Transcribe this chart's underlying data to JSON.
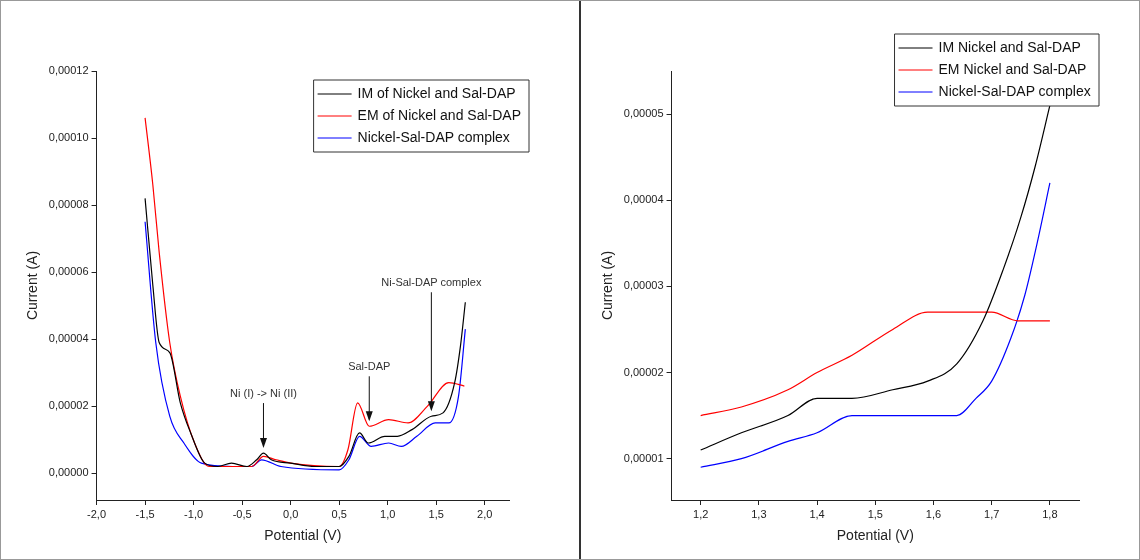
{
  "chart_data": [
    {
      "type": "line",
      "xlabel": "Potential (V)",
      "ylabel": "Current (A)",
      "legend": "top right",
      "grid": false,
      "xlim": [
        -2,
        2.25
      ],
      "ylim": [
        -8e-06,
        0.00012
      ],
      "xticks": [
        {
          "value": -2,
          "label": "-2,0"
        },
        {
          "value": -1.5,
          "label": "-1,5"
        },
        {
          "value": -1,
          "label": "-1,0"
        },
        {
          "value": -0.5,
          "label": "-0,5"
        },
        {
          "value": 0,
          "label": "0,0"
        },
        {
          "value": 0.5,
          "label": "0,5"
        },
        {
          "value": 1,
          "label": "1,0"
        },
        {
          "value": 1.5,
          "label": "1,5"
        },
        {
          "value": 2,
          "label": "2,0"
        }
      ],
      "yticks": [
        {
          "value": 0,
          "label": "0,00000"
        },
        {
          "value": 2e-05,
          "label": "0,00002"
        },
        {
          "value": 4e-05,
          "label": "0,00004"
        },
        {
          "value": 6e-05,
          "label": "0,00006"
        },
        {
          "value": 8e-05,
          "label": "0,00008"
        },
        {
          "value": 0.0001,
          "label": "0,00010"
        },
        {
          "value": 0.00012,
          "label": "0,00012"
        }
      ],
      "annotations": [
        {
          "text": "Ni (I) -> Ni (II)",
          "x": -0.28,
          "y": 6e-06
        },
        {
          "text": "Sal-DAP",
          "x": 0.81,
          "y": 1.4e-05
        },
        {
          "text": "Ni-Sal-DAP complex",
          "x": 1.45,
          "y": 1.7e-05
        }
      ],
      "series": [
        {
          "name": "IM of Nickel and Sal-DAP",
          "color": "#000000",
          "x": [
            -1.5,
            -1.42,
            -1.355,
            -1.246,
            -1.137,
            -1.03,
            -0.885,
            -0.75,
            -0.61,
            -0.45,
            -0.35,
            -0.28,
            -0.2,
            0,
            0.25,
            0.5,
            0.6,
            0.71,
            0.8,
            0.97,
            1.1,
            1.25,
            1.45,
            1.57,
            1.69,
            1.75,
            1.8
          ],
          "values": [
            8.2e-05,
            5.6e-05,
            3.9e-05,
            3.6e-05,
            2.1e-05,
            1.2e-05,
            3e-06,
            2e-06,
            3e-06,
            2e-06,
            4e-06,
            6e-06,
            4e-06,
            3e-06,
            2e-06,
            2e-06,
            5e-06,
            1.2e-05,
            9e-06,
            1.1e-05,
            1.1e-05,
            1.3e-05,
            1.7e-05,
            1.8e-05,
            2.7e-05,
            3.8e-05,
            5.1e-05
          ]
        },
        {
          "name": "EM of Nickel and Sal-DAP",
          "color": "#ff0000",
          "x": [
            -1.5,
            -1.42,
            -1.355,
            -1.246,
            -1.137,
            -0.99,
            -0.84,
            -0.6,
            -0.4,
            -0.28,
            -0.15,
            0,
            0.5,
            0.59,
            0.69,
            0.81,
            1.01,
            1.21,
            1.41,
            1.63,
            1.79
          ],
          "values": [
            0.000106,
            8.6e-05,
            6.6e-05,
            3.9e-05,
            2.3e-05,
            9e-06,
            2e-06,
            2e-06,
            2e-06,
            5e-06,
            4e-06,
            3e-06,
            2e-06,
            7e-06,
            2.1e-05,
            1.4e-05,
            1.6e-05,
            1.5e-05,
            2e-05,
            2.7e-05,
            2.6e-05
          ]
        },
        {
          "name": "Nickel-Sal-DAP complex",
          "color": "#0000ff",
          "x": [
            -1.5,
            -1.39,
            -1.246,
            -1.1,
            -0.92,
            -0.6,
            -0.4,
            -0.3,
            -0.1,
            0.5,
            0.6,
            0.71,
            0.83,
            1.01,
            1.14,
            1.3,
            1.49,
            1.63,
            1.73,
            1.8
          ],
          "values": [
            7.5e-05,
            3.9e-05,
            1.7e-05,
            9e-06,
            3e-06,
            2e-06,
            2e-06,
            4e-06,
            2e-06,
            1e-06,
            4e-06,
            1.1e-05,
            8e-06,
            9e-06,
            8e-06,
            1.1e-05,
            1.5e-05,
            1.5e-05,
            2.3e-05,
            4.3e-05
          ]
        }
      ]
    },
    {
      "type": "line",
      "xlabel": "Potential (V)",
      "ylabel": "Current (A)",
      "legend": "top right",
      "grid": false,
      "xlim": [
        1.15,
        1.85
      ],
      "ylim": [
        5.2e-06,
        5.5e-05
      ],
      "xticks": [
        {
          "value": 1.2,
          "label": "1,2"
        },
        {
          "value": 1.3,
          "label": "1,3"
        },
        {
          "value": 1.4,
          "label": "1,4"
        },
        {
          "value": 1.5,
          "label": "1,5"
        },
        {
          "value": 1.6,
          "label": "1,6"
        },
        {
          "value": 1.7,
          "label": "1,7"
        },
        {
          "value": 1.8,
          "label": "1,8"
        }
      ],
      "yticks": [
        {
          "value": 1e-05,
          "label": "0,00001"
        },
        {
          "value": 2e-05,
          "label": "0,00002"
        },
        {
          "value": 3e-05,
          "label": "0,00003"
        },
        {
          "value": 4e-05,
          "label": "0,00004"
        },
        {
          "value": 5e-05,
          "label": "0,00005"
        }
      ],
      "series": [
        {
          "name": "IM Nickel and Sal-DAP",
          "color": "#000000",
          "x": [
            1.2,
            1.27,
            1.35,
            1.4,
            1.46,
            1.53,
            1.59,
            1.64,
            1.685,
            1.72,
            1.75,
            1.775,
            1.8
          ],
          "values": [
            1.1e-05,
            1.3e-05,
            1.5e-05,
            1.7e-05,
            1.7e-05,
            1.8e-05,
            1.9e-05,
            2.1e-05,
            2.6e-05,
            3.2e-05,
            3.8e-05,
            4.4e-05,
            5.1e-05
          ]
        },
        {
          "name": "EM Nickel and Sal-DAP",
          "color": "#ff0000",
          "x": [
            1.2,
            1.27,
            1.35,
            1.4,
            1.46,
            1.53,
            1.59,
            1.64,
            1.7,
            1.745,
            1.77,
            1.8
          ],
          "values": [
            1.5e-05,
            1.6e-05,
            1.8e-05,
            2e-05,
            2.2e-05,
            2.5e-05,
            2.7e-05,
            2.7e-05,
            2.7e-05,
            2.6e-05,
            2.6e-05,
            2.6e-05
          ]
        },
        {
          "name": "Nickel-Sal-DAP complex",
          "color": "#0000ff",
          "x": [
            1.2,
            1.27,
            1.35,
            1.4,
            1.46,
            1.5,
            1.55,
            1.59,
            1.64,
            1.673,
            1.7,
            1.733,
            1.757,
            1.778,
            1.8
          ],
          "values": [
            9e-06,
            1e-05,
            1.2e-05,
            1.3e-05,
            1.5e-05,
            1.5e-05,
            1.5e-05,
            1.5e-05,
            1.5e-05,
            1.7e-05,
            1.9e-05,
            2.4e-05,
            2.9e-05,
            3.5e-05,
            4.2e-05
          ]
        }
      ]
    }
  ]
}
